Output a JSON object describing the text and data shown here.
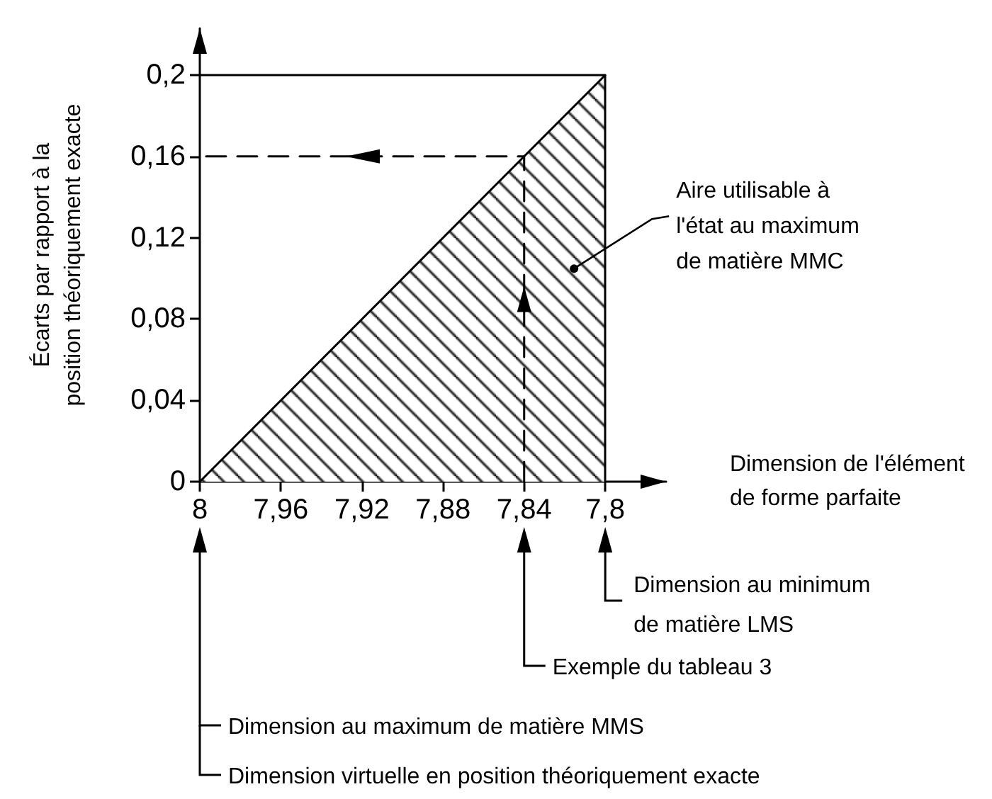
{
  "chart_data": {
    "type": "area",
    "ylabel": "Écarts par rapport à la\nposition théoriquement exacte",
    "xlabel": "Dimension de l'élément\nde forme parfaite",
    "series": [
      {
        "color": "#000000",
        "x": [
          8,
          7.8
        ],
        "values": [
          0,
          0.2
        ]
      },
      {
        "type": "line",
        "color": "#000000",
        "line_style": "dashed",
        "x": [
          7.84,
          7.84,
          8
        ],
        "values": [
          0,
          0.16,
          0.16
        ]
      }
    ],
    "ref_lines": [
      {
        "axis": "y",
        "value": 0.2,
        "color": "#000000",
        "line_style": "solid"
      },
      {
        "axis": "x",
        "value": 7.8,
        "color": "#000000",
        "line_style": "solid"
      }
    ],
    "xlim": [
      8,
      7.77
    ],
    "ylim": [
      0,
      0.223
    ],
    "xticks": [
      8,
      {
        "value": 7.96,
        "label": "7,96"
      },
      {
        "value": 7.92,
        "label": "7,92"
      },
      {
        "value": 7.88,
        "label": "7,88"
      },
      {
        "value": 7.84,
        "label": "7,84"
      },
      {
        "value": 7.8,
        "label": "7,8"
      }
    ],
    "yticks": [
      0,
      {
        "value": 0.04,
        "label": "0,04"
      },
      {
        "value": 0.08,
        "label": "0,08"
      },
      {
        "value": 0.12,
        "label": "0,12"
      },
      {
        "value": 0.16,
        "label": "0,16"
      },
      {
        "value": 0.2,
        "label": "0,2"
      }
    ],
    "annotations": [
      "Aire utilisable à\nl'état au maximum\nde matière MMC",
      "Dimension au minimum\nde matière LMS",
      "Exemple du tableau 3",
      "Dimension au maximum de matière MMS",
      "Dimension virtuelle en position théoriquement exacte"
    ],
    "grid": false,
    "marker": "none"
  }
}
